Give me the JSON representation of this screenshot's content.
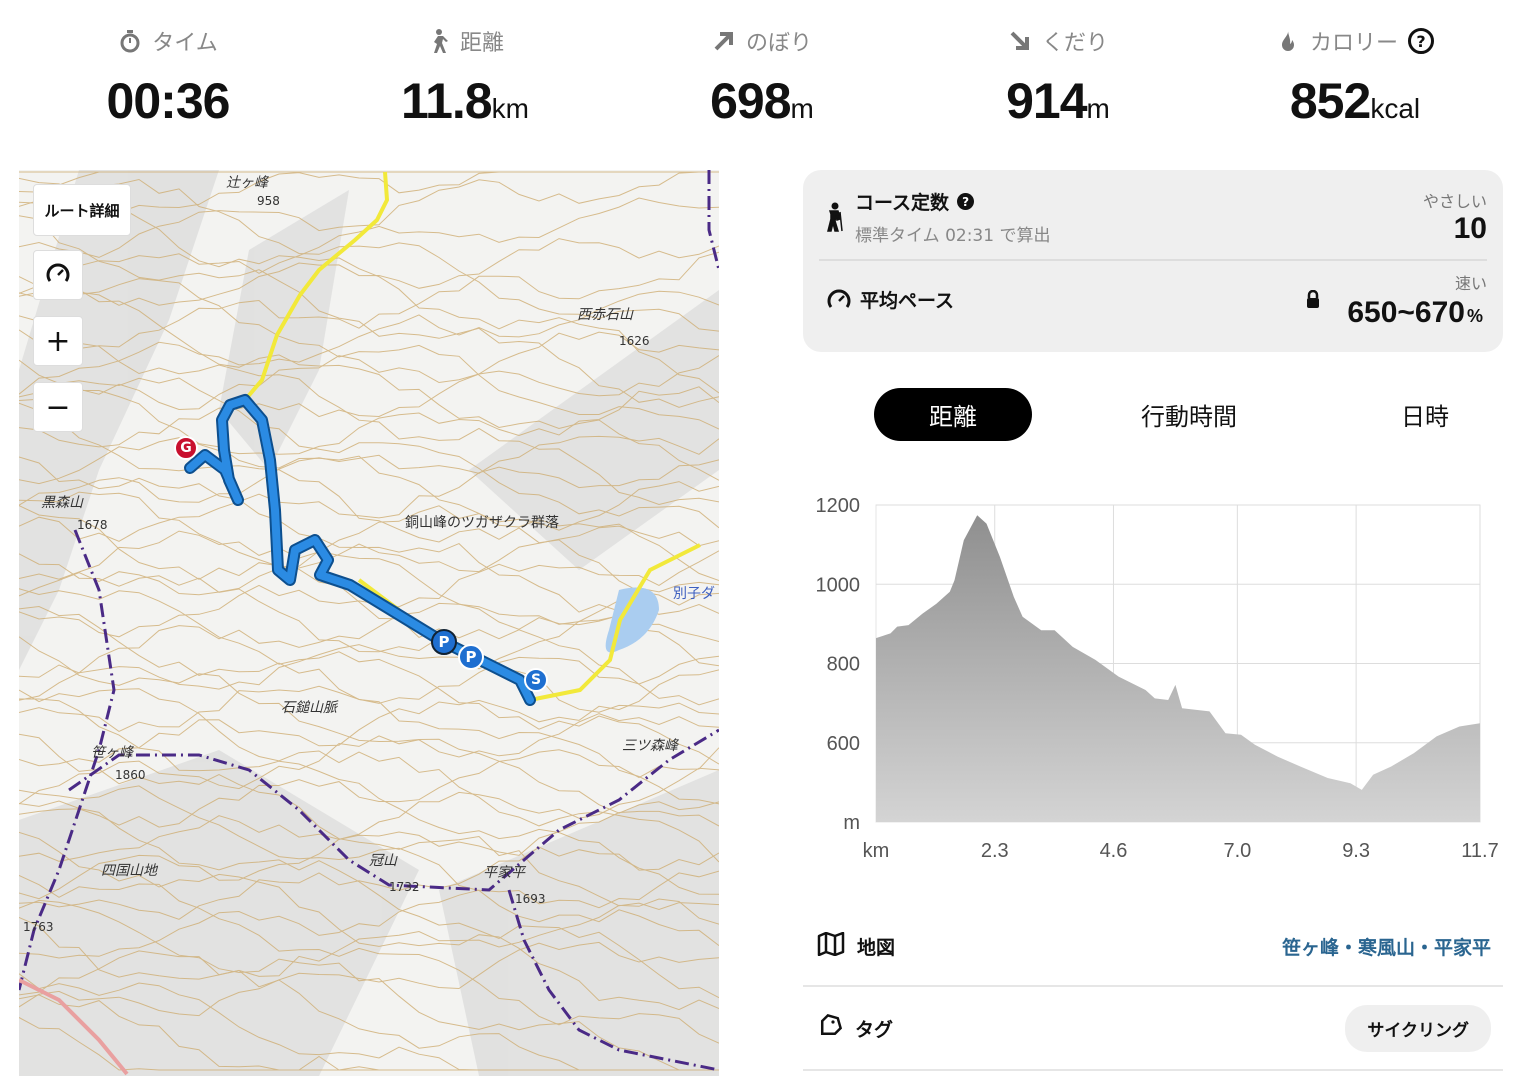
{
  "stats": [
    {
      "label": "タイム",
      "value": "00:36",
      "unit": "",
      "icon": "stopwatch-icon"
    },
    {
      "label": "距離",
      "value": "11.8",
      "unit": "km",
      "icon": "walking-icon"
    },
    {
      "label": "のぼり",
      "value": "698",
      "unit": "m",
      "icon": "arrow-up-right-icon"
    },
    {
      "label": "くだり",
      "value": "914",
      "unit": "m",
      "icon": "arrow-down-right-icon"
    },
    {
      "label": "カロリー",
      "value": "852",
      "unit": "kcal",
      "icon": "flame-icon",
      "help": "?"
    }
  ],
  "map": {
    "route_detail_button": "ルート詳細",
    "zoom_in": "+",
    "zoom_out": "−",
    "labels": [
      "辻ヶ峰",
      "958",
      "西赤石山",
      "1626",
      "黒森山",
      "1678",
      "銅山峰のツガザクラ群落",
      "別子ダ",
      "石鎚山脈",
      "三ツ森峰",
      "笹ヶ峰",
      "1860",
      "四国山地",
      "冠山",
      "1732",
      "平家平",
      "1693",
      "1763"
    ],
    "markers": {
      "goal": "G",
      "start": "S",
      "parking": "P"
    },
    "colors": {
      "route": "#1f7fd8",
      "road": "#f2e93a",
      "boundary": "#4a2a86",
      "contour": "#c9a86a"
    }
  },
  "course": {
    "title": "コース定数",
    "help": "?",
    "subtitle": "標準タイム 02:31 で算出",
    "difficulty_label": "やさしい",
    "difficulty_value": "10",
    "pace_title": "平均ペース",
    "pace_label": "速い",
    "pace_value": "650~670",
    "pace_unit": "%"
  },
  "tabs": [
    {
      "label": "距離",
      "active": true
    },
    {
      "label": "行動時間",
      "active": false
    },
    {
      "label": "日時",
      "active": false
    }
  ],
  "chart_data": {
    "type": "area",
    "xlabel": "km",
    "ylabel": "m",
    "xlim": [
      0,
      11.7
    ],
    "ylim": [
      400,
      1200
    ],
    "xticks": [
      "2.3",
      "4.6",
      "7.0",
      "9.3",
      "11.7"
    ],
    "xtick_values": [
      2.3,
      4.6,
      7.0,
      9.3,
      11.7
    ],
    "yticks": [
      1200,
      1000,
      800,
      600
    ],
    "grid": true,
    "x": [
      0,
      0.28,
      0.41,
      0.63,
      0.9,
      1.17,
      1.43,
      1.52,
      1.7,
      1.96,
      2.14,
      2.4,
      2.67,
      2.84,
      3.2,
      3.46,
      3.81,
      4.25,
      4.7,
      5.22,
      5.4,
      5.66,
      5.8,
      5.93,
      6.46,
      6.77,
      7.07,
      7.34,
      7.78,
      8.22,
      8.75,
      9.19,
      9.41,
      9.63,
      9.98,
      10.42,
      10.86,
      11.3,
      11.7
    ],
    "y": [
      864,
      876,
      893,
      897,
      926,
      951,
      981,
      1010,
      1111,
      1174,
      1153,
      1069,
      968,
      918,
      884,
      884,
      842,
      809,
      767,
      733,
      712,
      708,
      746,
      687,
      679,
      624,
      620,
      595,
      565,
      540,
      511,
      498,
      481,
      519,
      540,
      574,
      616,
      641,
      649
    ]
  },
  "info": {
    "map_label": "地図",
    "map_value": "笹ヶ峰・寒風山・平家平",
    "tag_label": "タグ",
    "tag_value": "サイクリング"
  }
}
